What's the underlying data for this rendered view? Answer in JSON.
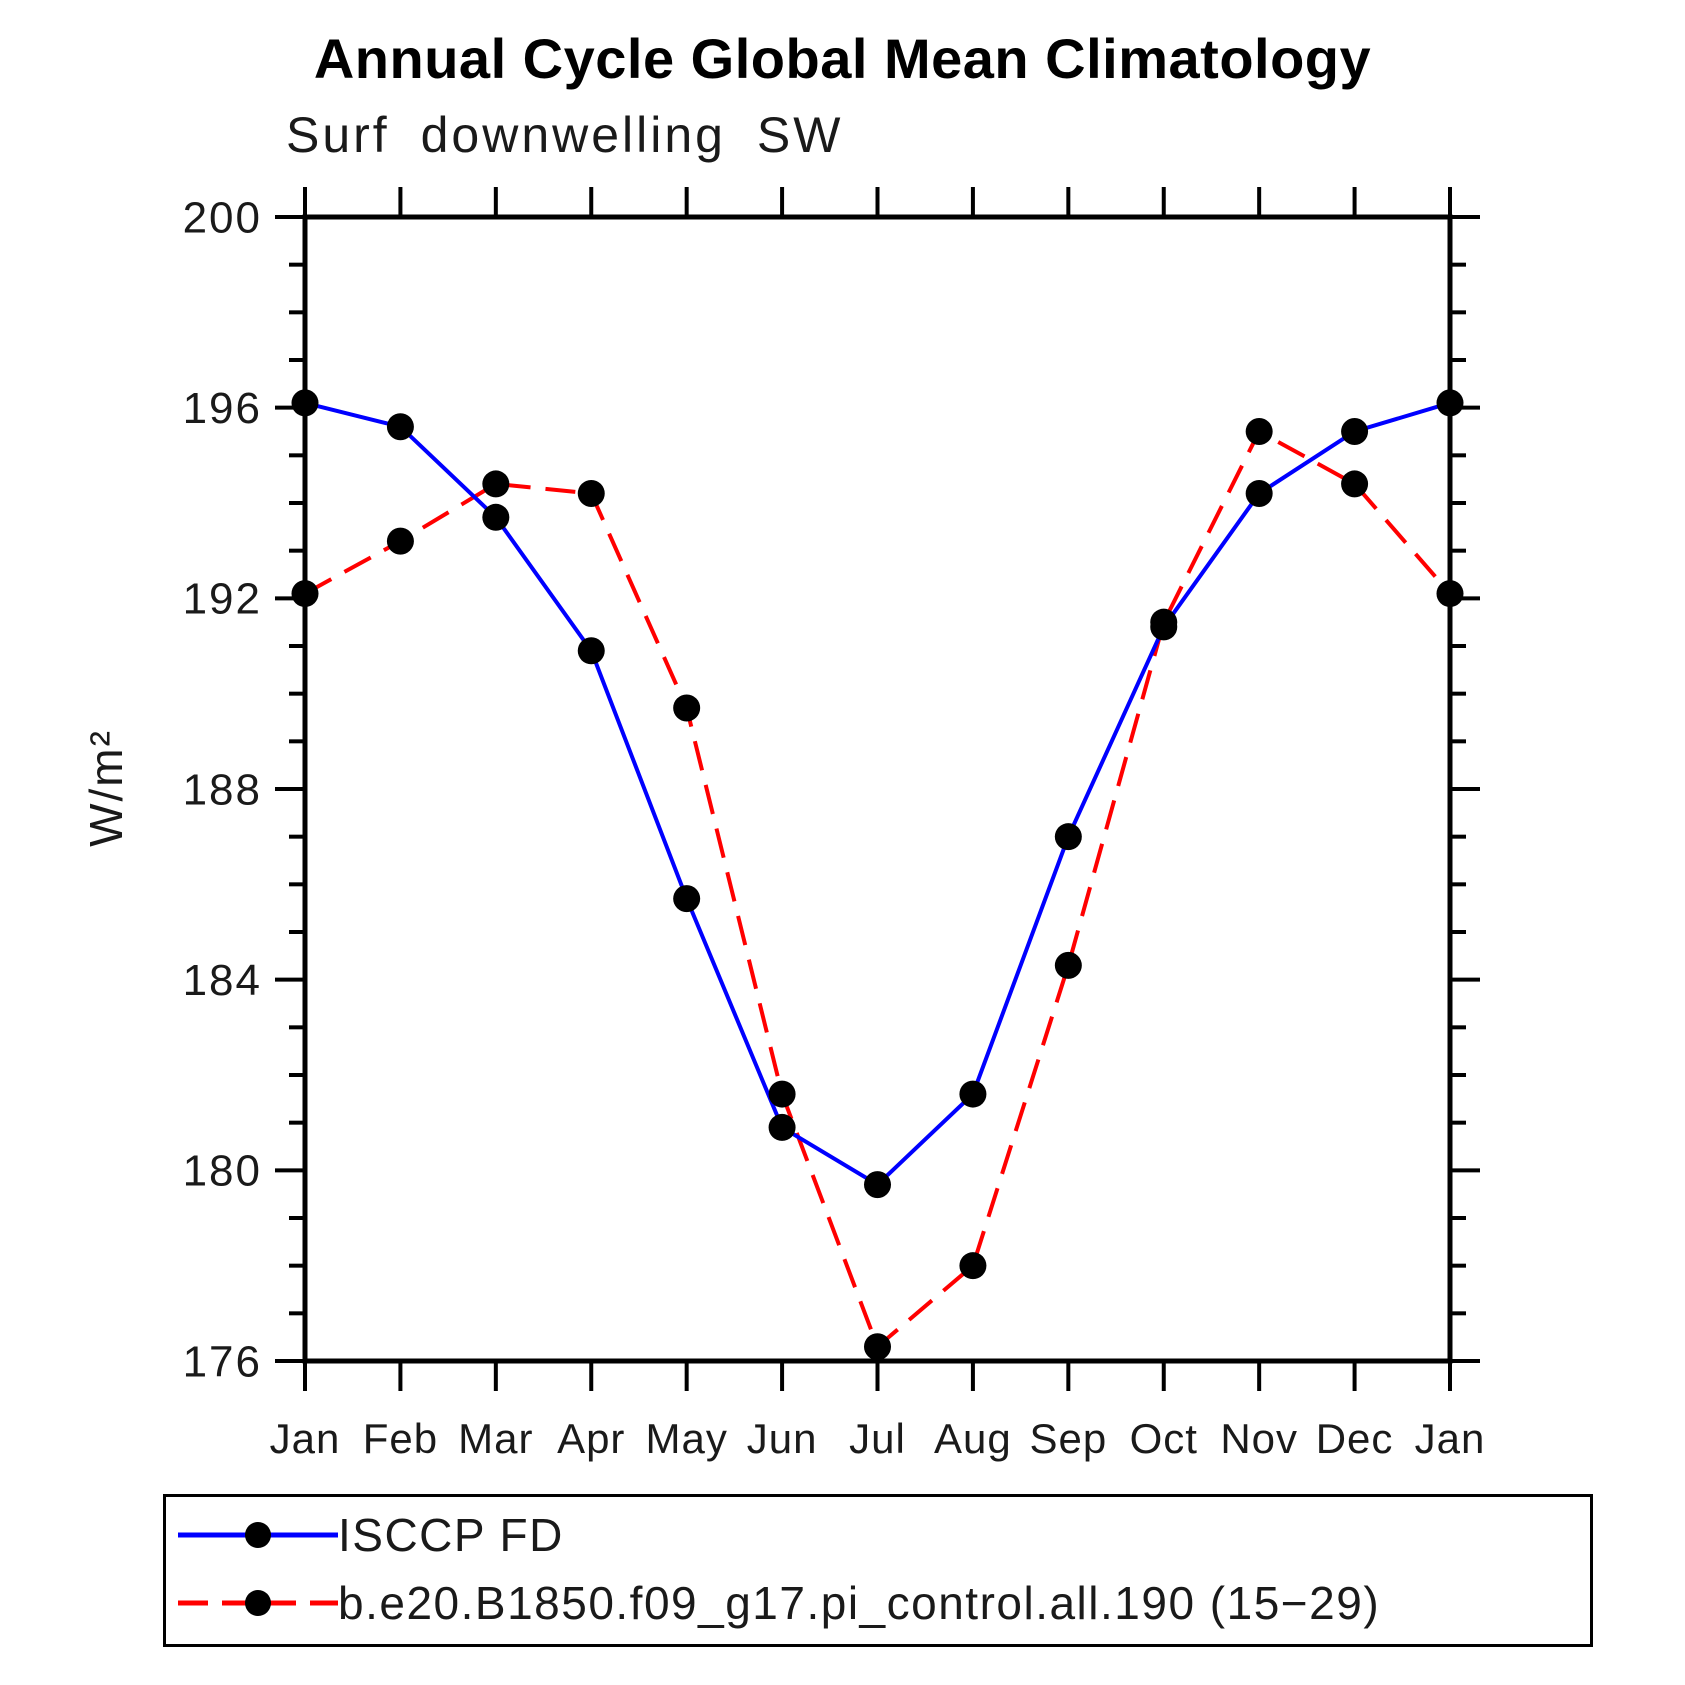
{
  "chart_data": {
    "type": "line",
    "title": "Annual Cycle Global Mean Climatology",
    "subtitle": "Surf downwelling SW",
    "ylabel": "W/m²",
    "xlabel": "",
    "categories": [
      "Jan",
      "Feb",
      "Mar",
      "Apr",
      "May",
      "Jun",
      "Jul",
      "Aug",
      "Sep",
      "Oct",
      "Nov",
      "Dec",
      "Jan"
    ],
    "y_ticks": [
      176,
      180,
      184,
      188,
      192,
      196,
      200
    ],
    "ylim": [
      176,
      200
    ],
    "minor_tick_step": 1,
    "grid": "off",
    "legend_position": "bottom-left-box",
    "axis_color": "#000000",
    "marker_color": "#000000",
    "series": [
      {
        "name": "ISCCP FD",
        "color": "#0000ff",
        "line_style": "solid",
        "marker": "filled-circle",
        "values": [
          196.1,
          195.6,
          193.7,
          190.9,
          185.7,
          180.9,
          179.7,
          181.6,
          187.0,
          191.4,
          194.2,
          195.5,
          196.1
        ]
      },
      {
        "name": "b.e20.B1850.f09_g17.pi_control.all.190 (15−29)",
        "color": "#ff0000",
        "line_style": "dashed",
        "marker": "filled-circle",
        "values": [
          192.1,
          193.2,
          194.4,
          194.2,
          189.7,
          181.6,
          176.3,
          178.0,
          184.3,
          191.5,
          195.5,
          194.4,
          192.1
        ]
      }
    ]
  }
}
